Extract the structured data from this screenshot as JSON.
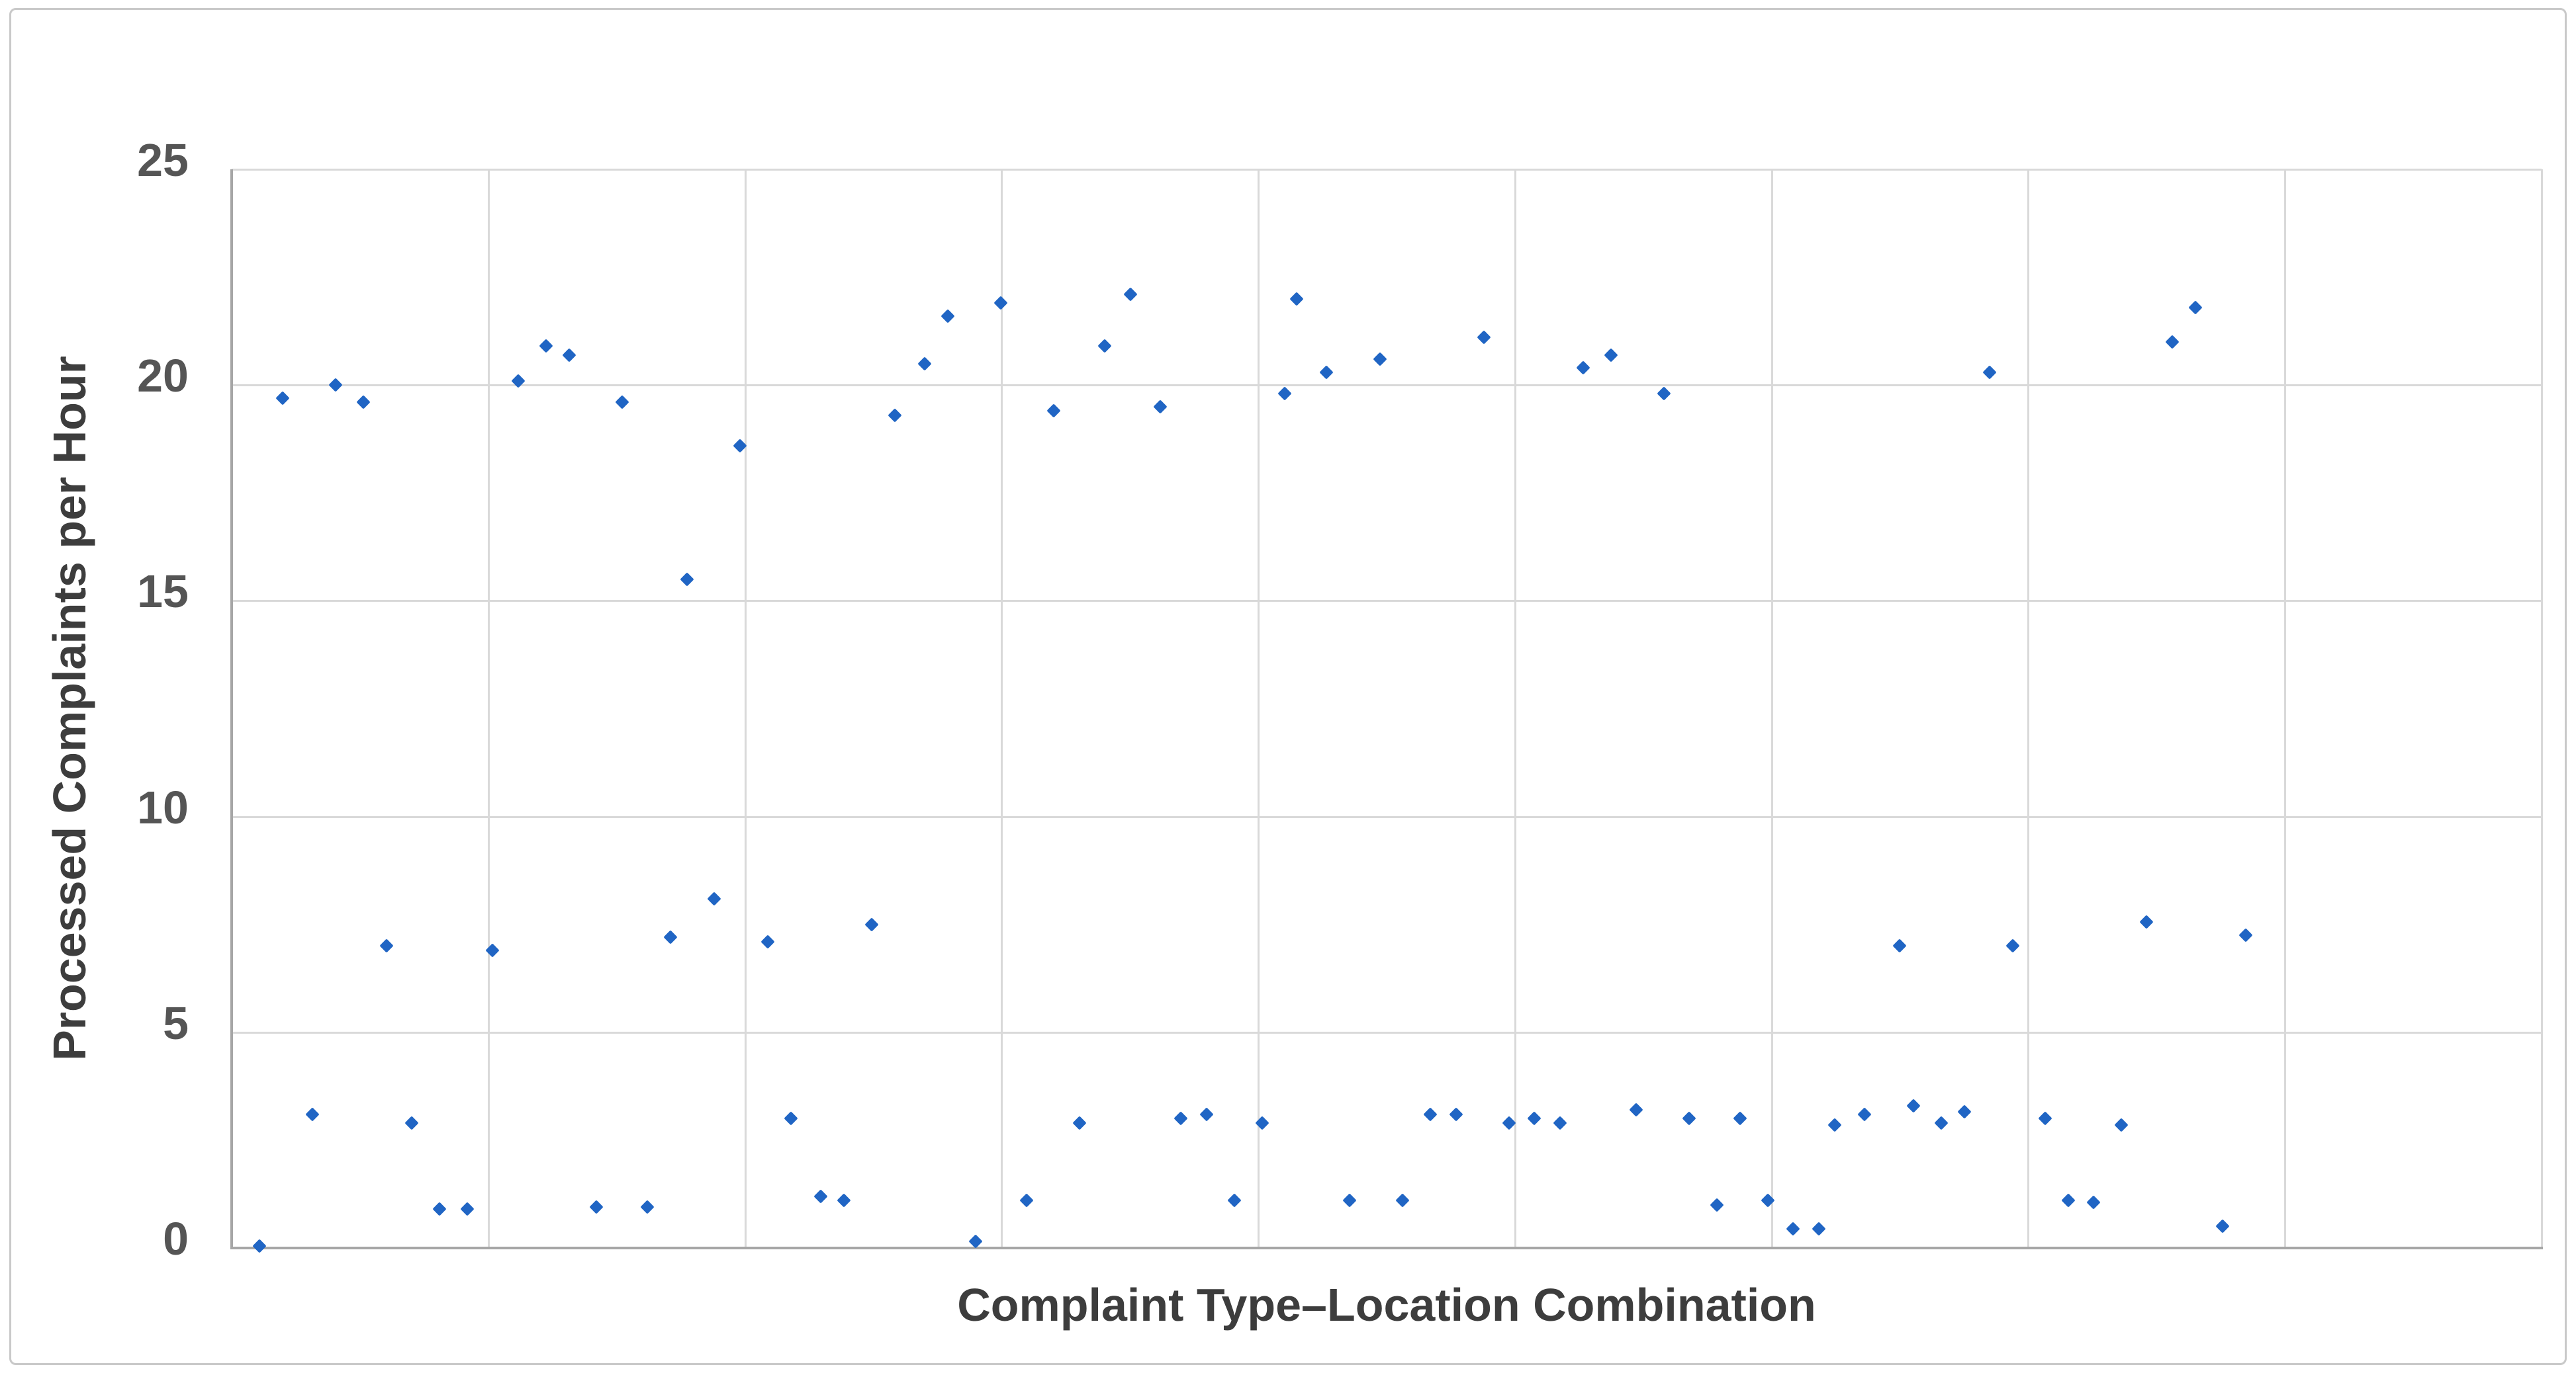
{
  "chart_data": {
    "type": "scatter",
    "title": "",
    "xlabel": "Complaint Type–Location Combination",
    "ylabel": "Processed Complaints per Hour",
    "ylim": [
      0,
      25
    ],
    "y_ticks": [
      0,
      5,
      10,
      15,
      20,
      25
    ],
    "x_axis": {
      "tick_labels_visible": false,
      "gridline_intervals": 9,
      "x_unit": "percent-of-axis"
    },
    "grid": "on",
    "legend": "none",
    "series": [
      {
        "name": "Processed Complaints per Hour",
        "marker": "diamond",
        "color": "#2065C4",
        "points": [
          {
            "x": 1.2,
            "y": 0.05
          },
          {
            "x": 2.2,
            "y": 19.7
          },
          {
            "x": 3.5,
            "y": 3.1
          },
          {
            "x": 4.5,
            "y": 20.0
          },
          {
            "x": 5.7,
            "y": 19.6
          },
          {
            "x": 6.7,
            "y": 7.0
          },
          {
            "x": 7.8,
            "y": 2.9
          },
          {
            "x": 9.0,
            "y": 0.9
          },
          {
            "x": 10.2,
            "y": 0.9
          },
          {
            "x": 11.3,
            "y": 6.9
          },
          {
            "x": 12.4,
            "y": 20.1
          },
          {
            "x": 13.6,
            "y": 20.9
          },
          {
            "x": 14.6,
            "y": 20.7
          },
          {
            "x": 15.8,
            "y": 0.95
          },
          {
            "x": 16.9,
            "y": 19.6
          },
          {
            "x": 18.0,
            "y": 0.95
          },
          {
            "x": 19.0,
            "y": 7.2
          },
          {
            "x": 19.7,
            "y": 15.5
          },
          {
            "x": 20.9,
            "y": 8.1
          },
          {
            "x": 22.0,
            "y": 18.6
          },
          {
            "x": 23.2,
            "y": 7.1
          },
          {
            "x": 24.2,
            "y": 3.0
          },
          {
            "x": 25.5,
            "y": 1.2
          },
          {
            "x": 26.5,
            "y": 1.1
          },
          {
            "x": 27.7,
            "y": 7.5
          },
          {
            "x": 28.7,
            "y": 19.3
          },
          {
            "x": 30.0,
            "y": 20.5
          },
          {
            "x": 31.0,
            "y": 21.6
          },
          {
            "x": 32.2,
            "y": 0.15
          },
          {
            "x": 33.3,
            "y": 21.9
          },
          {
            "x": 34.4,
            "y": 1.1
          },
          {
            "x": 35.6,
            "y": 19.4
          },
          {
            "x": 36.7,
            "y": 2.9
          },
          {
            "x": 37.8,
            "y": 20.9
          },
          {
            "x": 38.9,
            "y": 22.1
          },
          {
            "x": 40.2,
            "y": 19.5
          },
          {
            "x": 41.1,
            "y": 3.0
          },
          {
            "x": 42.2,
            "y": 3.1
          },
          {
            "x": 43.4,
            "y": 1.1
          },
          {
            "x": 44.6,
            "y": 2.9
          },
          {
            "x": 45.6,
            "y": 19.8
          },
          {
            "x": 46.1,
            "y": 22.0
          },
          {
            "x": 47.4,
            "y": 20.3
          },
          {
            "x": 48.4,
            "y": 1.1
          },
          {
            "x": 49.7,
            "y": 20.6
          },
          {
            "x": 50.7,
            "y": 1.1
          },
          {
            "x": 51.9,
            "y": 3.1
          },
          {
            "x": 53.0,
            "y": 3.1
          },
          {
            "x": 54.2,
            "y": 21.1
          },
          {
            "x": 55.3,
            "y": 2.9
          },
          {
            "x": 56.4,
            "y": 3.0
          },
          {
            "x": 57.5,
            "y": 2.9
          },
          {
            "x": 58.5,
            "y": 20.4
          },
          {
            "x": 59.7,
            "y": 20.7
          },
          {
            "x": 60.8,
            "y": 3.2
          },
          {
            "x": 62.0,
            "y": 19.8
          },
          {
            "x": 63.1,
            "y": 3.0
          },
          {
            "x": 64.3,
            "y": 1.0
          },
          {
            "x": 65.3,
            "y": 3.0
          },
          {
            "x": 66.5,
            "y": 1.1
          },
          {
            "x": 67.6,
            "y": 0.45
          },
          {
            "x": 68.7,
            "y": 0.45
          },
          {
            "x": 69.4,
            "y": 2.85
          },
          {
            "x": 70.7,
            "y": 3.1
          },
          {
            "x": 72.2,
            "y": 7.0
          },
          {
            "x": 72.8,
            "y": 3.3
          },
          {
            "x": 74.0,
            "y": 2.9
          },
          {
            "x": 75.0,
            "y": 3.15
          },
          {
            "x": 76.1,
            "y": 20.3
          },
          {
            "x": 77.1,
            "y": 7.0
          },
          {
            "x": 78.5,
            "y": 3.0
          },
          {
            "x": 79.5,
            "y": 1.1
          },
          {
            "x": 80.6,
            "y": 1.05
          },
          {
            "x": 81.8,
            "y": 2.85
          },
          {
            "x": 82.9,
            "y": 7.55
          },
          {
            "x": 84.0,
            "y": 21.0
          },
          {
            "x": 85.0,
            "y": 21.8
          },
          {
            "x": 86.2,
            "y": 0.5
          },
          {
            "x": 87.2,
            "y": 7.25
          }
        ]
      }
    ]
  },
  "colors": {
    "marker": "#2065C4",
    "gridline": "#D9D9D9",
    "axis_line": "#A6A6A6",
    "tick_text": "#555555",
    "title_text": "#3D3D3D",
    "frame_border": "#C9C9C9",
    "background": "#FFFFFF"
  }
}
